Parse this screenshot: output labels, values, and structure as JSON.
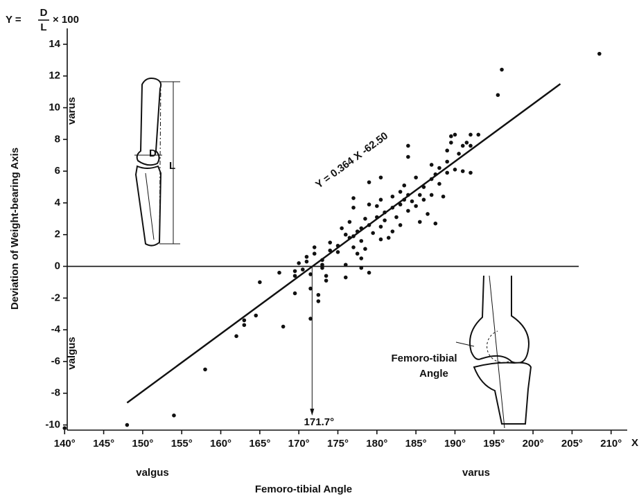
{
  "chart_data": {
    "type": "scatter",
    "formula": {
      "lhs": "Y =",
      "num": "D",
      "den": "L",
      "rhs": "× 100"
    },
    "x_label": "Femoro-tibial Angle",
    "y_label": "Deviation of Weight-bearing Axis",
    "x_axis_name": "X",
    "y_side_labels": {
      "top": "varus",
      "bottom": "valgus"
    },
    "x_side_labels": {
      "left": "valgus",
      "right": "varus"
    },
    "xlim": [
      139,
      211
    ],
    "ylim": [
      -10.5,
      15
    ],
    "xticks": [
      {
        "value": 140,
        "label": "140°"
      },
      {
        "value": 145,
        "label": "145°"
      },
      {
        "value": 150,
        "label": "150°"
      },
      {
        "value": 155,
        "label": "155°"
      },
      {
        "value": 160,
        "label": "160°"
      },
      {
        "value": 165,
        "label": "165°"
      },
      {
        "value": 170,
        "label": "170°"
      },
      {
        "value": 175,
        "label": "175°"
      },
      {
        "value": 180,
        "label": "180°"
      },
      {
        "value": 185,
        "label": "185°"
      },
      {
        "value": 190,
        "label": "190°"
      },
      {
        "value": 195,
        "label": "195°"
      },
      {
        "value": 200,
        "label": "200°"
      },
      {
        "value": 205,
        "label": "205°"
      },
      {
        "value": 210,
        "label": "210°"
      }
    ],
    "yticks": [
      -10,
      -8,
      -6,
      -4,
      -2,
      0,
      2,
      4,
      6,
      8,
      10,
      12,
      14
    ],
    "reference_line_y": 0,
    "color": "#111111",
    "x": [
      140,
      148,
      154,
      158,
      162,
      163,
      163,
      164.5,
      165,
      167.5,
      168,
      169.5,
      169.5,
      169.5,
      170,
      170.5,
      171,
      171,
      171.5,
      171.5,
      171.5,
      172,
      172,
      172.5,
      172.5,
      173,
      173,
      173,
      173.5,
      173.5,
      174,
      174,
      175,
      175,
      175.5,
      176,
      176,
      176.5,
      176.5,
      177,
      177,
      177,
      177,
      177.5,
      177.5,
      178,
      178,
      178,
      178,
      178.5,
      178.5,
      179,
      179,
      179,
      179,
      179.5,
      180,
      180,
      180.5,
      180.5,
      180.5,
      181,
      181,
      181.5,
      182,
      182,
      182,
      182.5,
      183,
      183,
      183,
      183.5,
      183.5,
      184,
      184,
      184,
      184,
      184.5,
      185,
      185,
      185.5,
      185.5,
      186,
      186,
      186.5,
      187,
      187,
      187,
      187.5,
      187.5,
      188,
      188,
      188.5,
      189,
      189,
      189,
      189.5,
      189.5,
      190,
      190,
      190.5,
      191,
      191,
      191.5,
      192,
      192,
      193,
      195.5,
      196,
      208.5,
      192,
      180.5,
      176
    ],
    "values": [
      -10.2,
      -10,
      -9.4,
      -6.5,
      -4.4,
      -3.4,
      -3.7,
      -3.1,
      -1,
      -0.4,
      -3.8,
      -0.3,
      -0.6,
      -1.7,
      0.2,
      -0.2,
      0.6,
      0.3,
      -0.5,
      -1.4,
      -3.3,
      0.8,
      1.2,
      -2.2,
      -1.8,
      0.4,
      0.1,
      -0.1,
      -0.6,
      -0.9,
      1,
      1.5,
      1.3,
      0.9,
      2.4,
      -0.7,
      0.1,
      1.8,
      2.8,
      3.7,
      4.3,
      1.9,
      1.2,
      2.2,
      0.8,
      1.6,
      2.4,
      0.5,
      -0.1,
      1.1,
      3,
      3.9,
      5.3,
      2.6,
      -0.4,
      2.1,
      3.1,
      3.8,
      4.2,
      5.6,
      2.5,
      2.9,
      3.4,
      1.8,
      4.4,
      3.7,
      2.2,
      3.1,
      4.7,
      3.9,
      2.6,
      5.1,
      4.2,
      7.6,
      6.9,
      4.5,
      3.5,
      4.1,
      5.6,
      3.8,
      4.5,
      2.8,
      5,
      4.2,
      3.3,
      5.5,
      6.4,
      4.5,
      5.8,
      2.7,
      6.2,
      5.2,
      4.4,
      7.3,
      6.6,
      5.9,
      8.2,
      7.8,
      8.3,
      6.1,
      7.1,
      7.6,
      6,
      7.8,
      8.3,
      7.6,
      8.3,
      10.8,
      12.4,
      13.4,
      5.9,
      1.7,
      2
    ],
    "regression": {
      "label": "Y = 0.364 X -62.50",
      "x": [
        148,
        203.5
      ],
      "y": [
        -8.6,
        11.5
      ]
    },
    "annotation": {
      "value": 171.7,
      "label": "171.7°"
    },
    "leg_diagram": {
      "d": "D",
      "l": "L"
    },
    "knee_diagram": {
      "label_line1": "Femoro-tibial",
      "label_line2": "Angle"
    }
  }
}
